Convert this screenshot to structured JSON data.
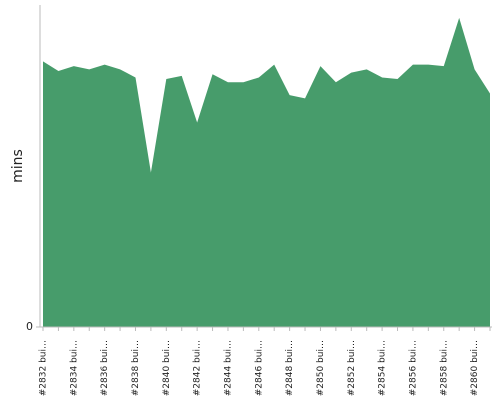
{
  "chart_data": {
    "type": "area",
    "ylabel": "mins",
    "categories": [
      "#2832 bui…",
      null,
      "#2834 bui…",
      null,
      "#2836 bui…",
      null,
      "#2838 bui…",
      null,
      "#2840 bui…",
      null,
      "#2842 bui…",
      null,
      "#2844 bui…",
      null,
      "#2846 bui…",
      null,
      "#2848 bui…",
      null,
      "#2850 bui…",
      null,
      "#2852 bui…",
      null,
      "#2854 bui…",
      null,
      "#2856 bui…",
      null,
      "#2858 bui…",
      null,
      "#2860 bui…",
      null
    ],
    "values": [
      16.5,
      15.9,
      16.2,
      16.0,
      16.3,
      16.0,
      15.5,
      9.6,
      15.4,
      15.6,
      12.7,
      15.7,
      15.2,
      15.2,
      15.5,
      16.3,
      14.4,
      14.2,
      16.2,
      15.2,
      15.8,
      16.0,
      15.5,
      15.4,
      16.3,
      16.3,
      16.2,
      19.2,
      16.0,
      14.5
    ],
    "color": "#479c6b",
    "ylim": [
      0,
      20
    ],
    "yticks": [
      0
    ]
  }
}
